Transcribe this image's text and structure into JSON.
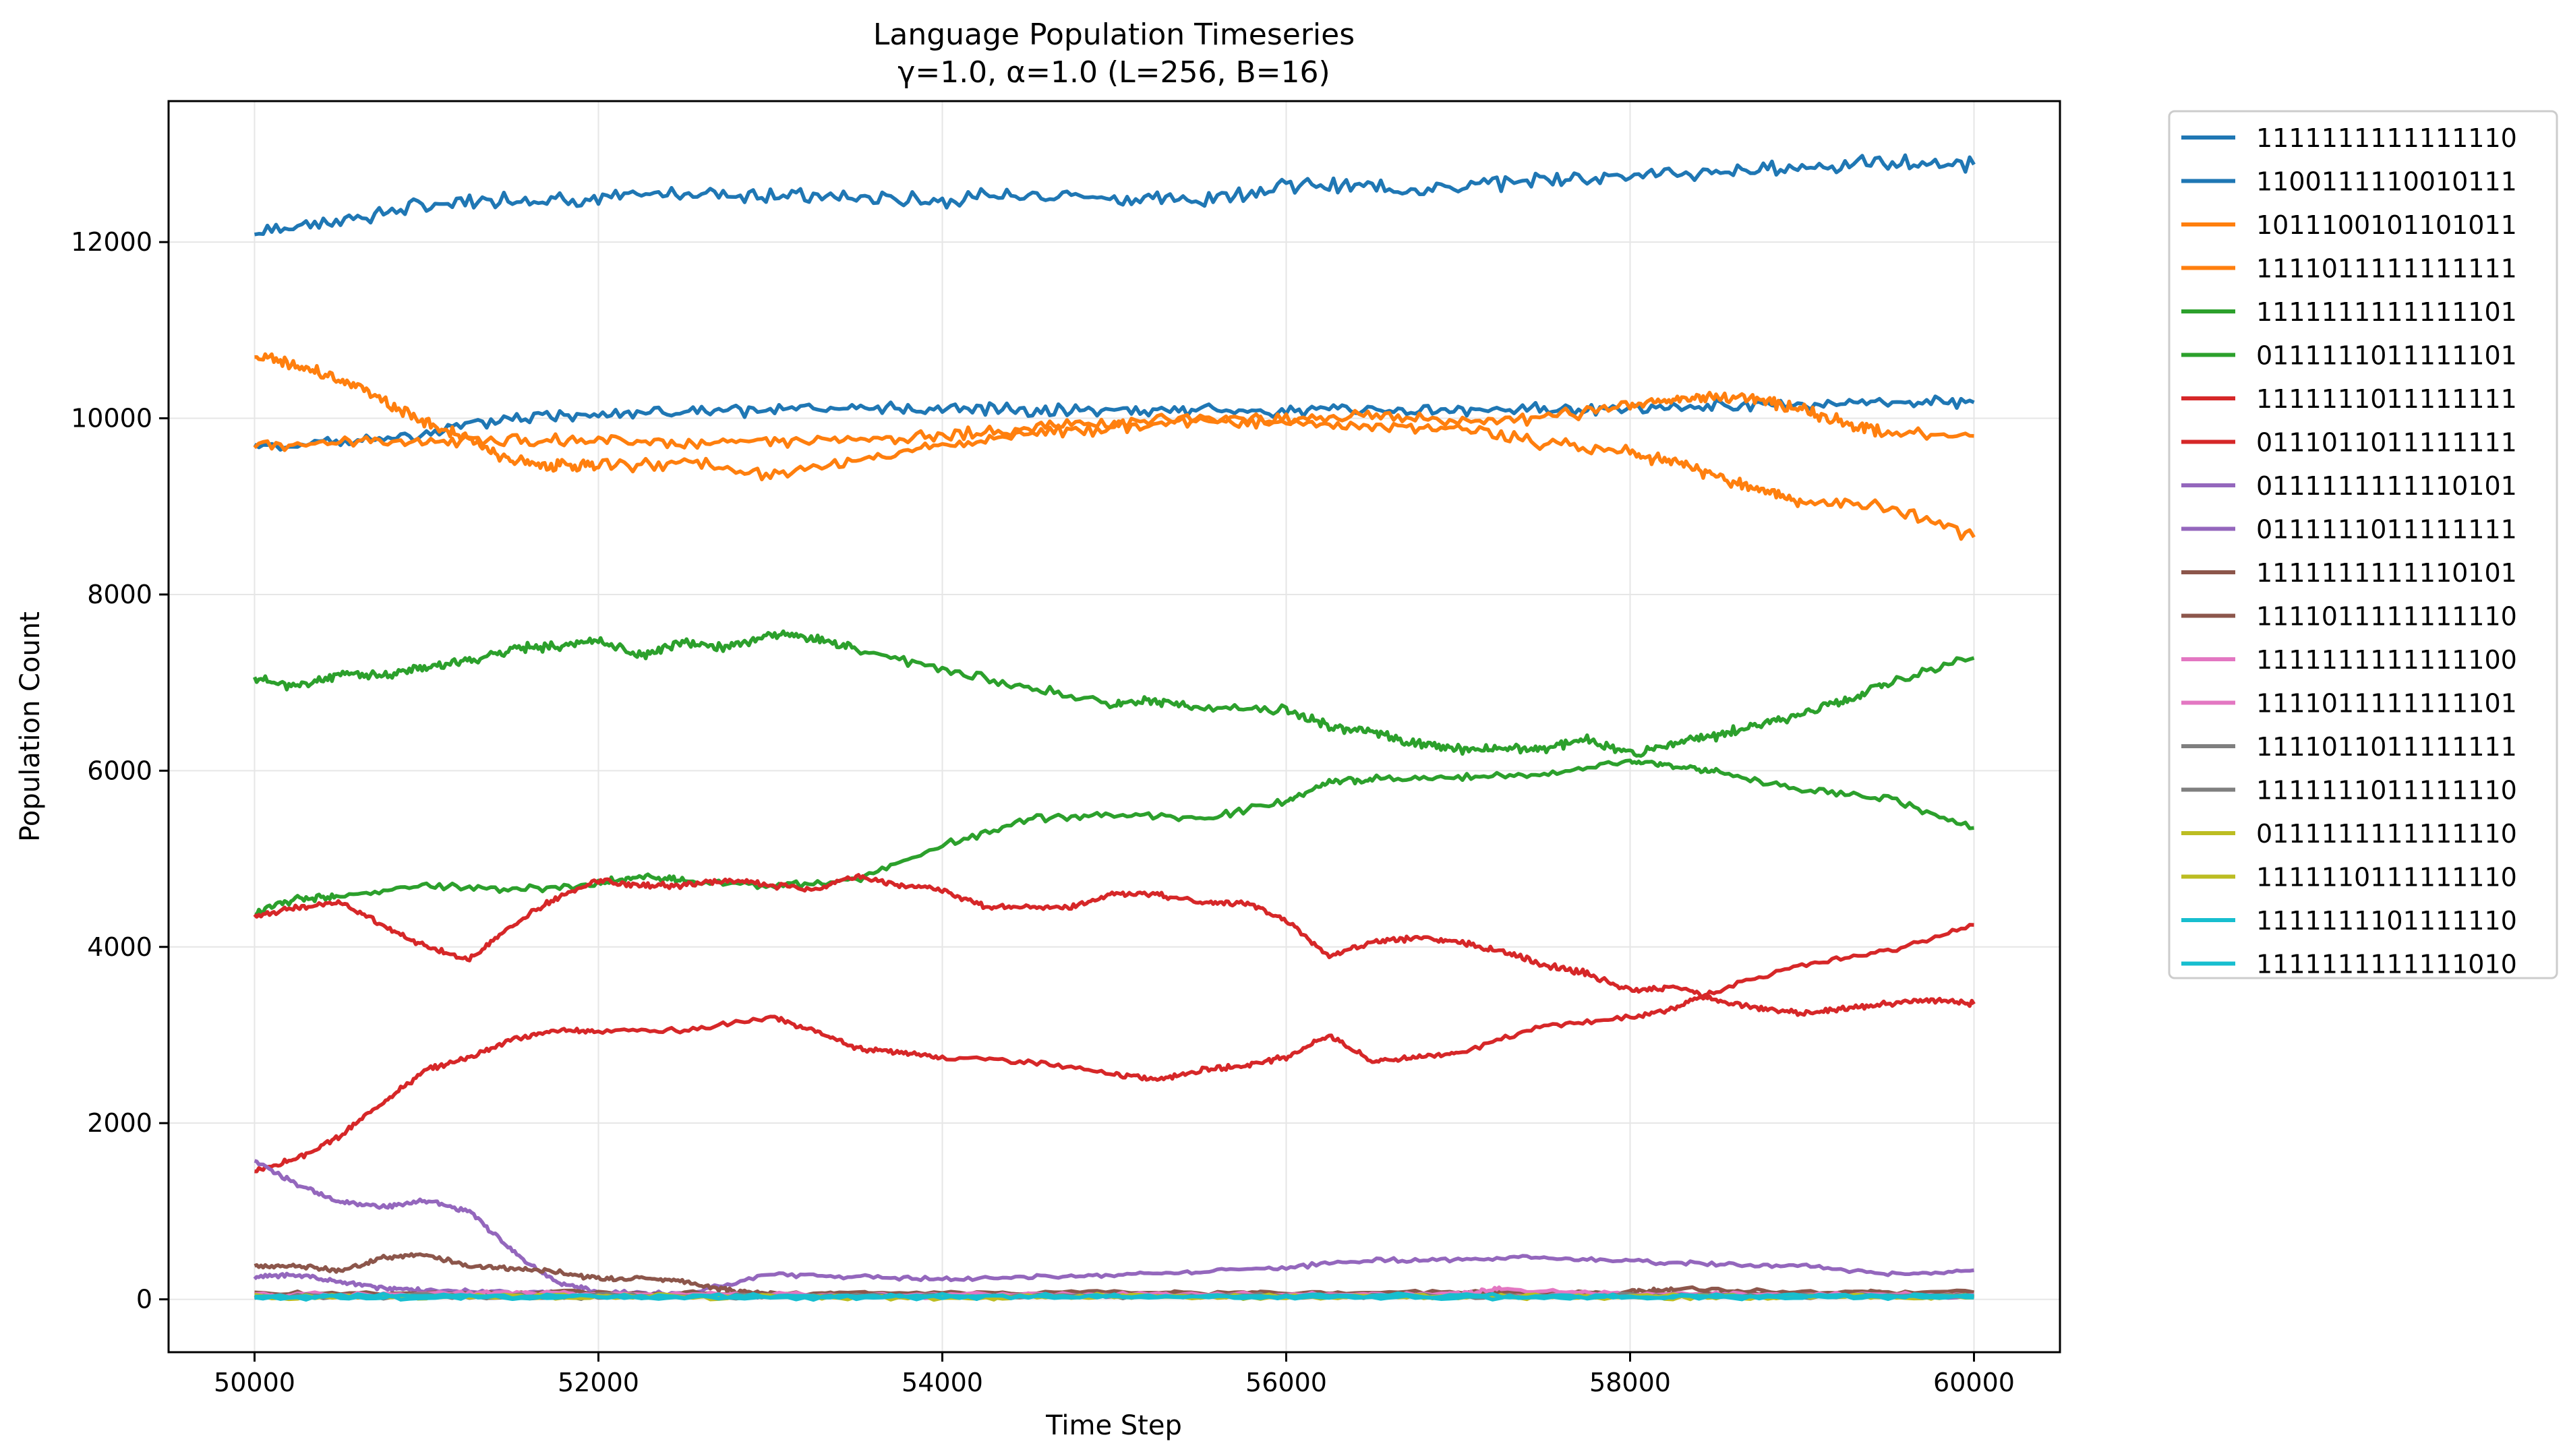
{
  "chart_data": {
    "type": "line",
    "title_line1": "Language Population Timeseries",
    "title_line2": "γ=1.0, α=1.0 (L=256, B=16)",
    "xlabel": "Time Step",
    "ylabel": "Population Count",
    "xlim": [
      49500,
      60500
    ],
    "ylim": [
      -600,
      13600
    ],
    "xticks": [
      50000,
      52000,
      54000,
      56000,
      58000,
      60000
    ],
    "yticks": [
      0,
      2000,
      4000,
      6000,
      8000,
      10000,
      12000
    ],
    "grid": true,
    "legend_placement": "outside-right-top",
    "series": [
      {
        "name": "1111111111111110",
        "color": "#1f77b4",
        "x": [
          50000,
          50500,
          51000,
          51500,
          52000,
          52500,
          53000,
          53500,
          54000,
          54500,
          55000,
          55500,
          56000,
          56500,
          57000,
          57500,
          58000,
          58500,
          59000,
          59500,
          60000
        ],
        "y": [
          12120,
          12250,
          12420,
          12500,
          12480,
          12560,
          12540,
          12500,
          12480,
          12560,
          12500,
          12480,
          12650,
          12620,
          12620,
          12720,
          12760,
          12780,
          12860,
          12900,
          12880
        ]
      },
      {
        "name": "1100111110010111",
        "color": "#1f77b4",
        "x": [
          50000,
          50500,
          51000,
          51500,
          52000,
          52500,
          53000,
          53500,
          54000,
          54500,
          55000,
          55500,
          56000,
          56500,
          57000,
          57500,
          58000,
          58500,
          59000,
          59500,
          60000
        ],
        "y": [
          9680,
          9720,
          9820,
          10000,
          10060,
          10070,
          10090,
          10100,
          10110,
          10100,
          10100,
          10090,
          10080,
          10110,
          10080,
          10110,
          10110,
          10130,
          10150,
          10180,
          10180
        ]
      },
      {
        "name": "1011100101101011",
        "color": "#ff7f0e",
        "x": [
          50000,
          50250,
          50500,
          50750,
          51000,
          51250,
          51500,
          51750,
          52000,
          52500,
          53000,
          53500,
          54000,
          54500,
          55000,
          55500,
          56000,
          56500,
          57000,
          57500,
          58000,
          58250,
          58500,
          58750,
          59000,
          59500,
          60000
        ],
        "y": [
          10700,
          10600,
          10450,
          10200,
          9950,
          9750,
          9520,
          9450,
          9450,
          9500,
          9350,
          9520,
          9700,
          9820,
          9900,
          9980,
          9950,
          9900,
          9900,
          9720,
          9620,
          9500,
          9350,
          9200,
          9050,
          9000,
          8650
        ]
      },
      {
        "name": "1111011111111111",
        "color": "#ff7f0e",
        "x": [
          50000,
          50500,
          51000,
          51500,
          52000,
          52500,
          53000,
          53500,
          54000,
          54500,
          55000,
          55500,
          56000,
          56500,
          57000,
          57500,
          58000,
          58250,
          58500,
          58750,
          59000,
          59250,
          59500,
          60000
        ],
        "y": [
          9700,
          9720,
          9750,
          9760,
          9750,
          9720,
          9730,
          9750,
          9800,
          9900,
          9950,
          9980,
          10000,
          10020,
          9950,
          10000,
          10150,
          10200,
          10250,
          10220,
          10100,
          9950,
          9820,
          9800
        ]
      },
      {
        "name": "1111111111111101",
        "color": "#2ca02c",
        "x": [
          50000,
          50250,
          50500,
          50750,
          51000,
          51250,
          51500,
          51750,
          52000,
          52250,
          52500,
          52750,
          53000,
          53250,
          53500,
          54000,
          54500,
          55000,
          55250,
          55500,
          56000,
          56250,
          56500,
          56750,
          57000,
          57250,
          57500,
          57750,
          58000,
          58250,
          58500,
          58750,
          59000,
          59250,
          59500,
          60000
        ],
        "y": [
          7050,
          6950,
          7100,
          7080,
          7180,
          7250,
          7380,
          7420,
          7480,
          7300,
          7450,
          7400,
          7550,
          7500,
          7380,
          7150,
          6950,
          6750,
          6800,
          6700,
          6700,
          6500,
          6450,
          6300,
          6250,
          6250,
          6250,
          6350,
          6200,
          6300,
          6400,
          6520,
          6650,
          6800,
          7000,
          7280
        ]
      },
      {
        "name": "0111111011111101",
        "color": "#2ca02c",
        "x": [
          50000,
          50250,
          50500,
          51000,
          51500,
          52000,
          52250,
          52500,
          53000,
          53500,
          54000,
          54500,
          55000,
          55500,
          56000,
          56250,
          56500,
          57000,
          57500,
          58000,
          58250,
          58500,
          59000,
          59500,
          60000
        ],
        "y": [
          4380,
          4550,
          4580,
          4700,
          4650,
          4720,
          4800,
          4750,
          4700,
          4750,
          5150,
          5450,
          5500,
          5450,
          5650,
          5880,
          5900,
          5920,
          5950,
          6100,
          6050,
          5980,
          5780,
          5680,
          5350
        ]
      },
      {
        "name": "1111111011111111",
        "color": "#d62728",
        "x": [
          50000,
          50250,
          50500,
          50750,
          51000,
          51250,
          51500,
          51750,
          52000,
          52250,
          52500,
          52750,
          53000,
          53250,
          53500,
          53750,
          54000,
          54250,
          54500,
          54750,
          55000,
          55250,
          55500,
          55750,
          56000,
          56250,
          56500,
          56750,
          57000,
          57250,
          57500,
          57750,
          58000,
          58250,
          58500,
          58750,
          59000,
          59250,
          59500,
          59750,
          60000
        ],
        "y": [
          4350,
          4450,
          4500,
          4250,
          4000,
          3850,
          4250,
          4550,
          4750,
          4700,
          4700,
          4750,
          4700,
          4650,
          4800,
          4700,
          4650,
          4450,
          4450,
          4450,
          4600,
          4600,
          4500,
          4500,
          4300,
          3900,
          4050,
          4100,
          4050,
          3950,
          3800,
          3700,
          3500,
          3550,
          3400,
          3300,
          3250,
          3300,
          3350,
          3400,
          3350
        ]
      },
      {
        "name": "0111011011111111",
        "color": "#d62728",
        "x": [
          50000,
          50250,
          50500,
          50750,
          51000,
          51250,
          51500,
          51750,
          52000,
          52500,
          53000,
          53250,
          53500,
          53750,
          54000,
          54500,
          55000,
          55250,
          55500,
          55750,
          56000,
          56250,
          56500,
          56750,
          57000,
          57500,
          58000,
          58250,
          58500,
          59000,
          59500,
          60000
        ],
        "y": [
          1450,
          1600,
          1850,
          2250,
          2600,
          2750,
          2950,
          3050,
          3050,
          3050,
          3200,
          3050,
          2850,
          2800,
          2750,
          2700,
          2550,
          2500,
          2600,
          2650,
          2750,
          3000,
          2700,
          2750,
          2800,
          3100,
          3200,
          3300,
          3500,
          3800,
          3950,
          4250
        ]
      },
      {
        "name": "0111111111110101",
        "color": "#9467bd",
        "x": [
          50000,
          50250,
          50500,
          50750,
          51000,
          51250,
          51500,
          51750,
          52000,
          52500,
          53000,
          53500,
          54000,
          54500,
          55000,
          55500,
          56000,
          56500,
          57000,
          57500,
          58000,
          58500,
          59000,
          59500,
          60000
        ],
        "y": [
          1580,
          1300,
          1100,
          1050,
          1120,
          1000,
          550,
          200,
          80,
          60,
          280,
          260,
          230,
          250,
          280,
          320,
          360,
          450,
          450,
          480,
          430,
          400,
          380,
          280,
          330
        ]
      },
      {
        "name": "0111111011111111",
        "color": "#9467bd",
        "x": [
          50000,
          50250,
          50500,
          50750,
          51000,
          51500,
          52000,
          52500,
          53000,
          54000,
          55000,
          56000,
          57000,
          58000,
          59000,
          60000
        ],
        "y": [
          250,
          280,
          200,
          130,
          100,
          80,
          60,
          50,
          40,
          40,
          40,
          40,
          40,
          40,
          40,
          40
        ]
      },
      {
        "name": "1111111111110101",
        "color": "#8c564b",
        "x": [
          50000,
          50250,
          50500,
          50750,
          51000,
          51250,
          51500,
          51750,
          52000,
          52250,
          52500,
          52750,
          53000,
          54000,
          55000,
          56000,
          57000,
          58000,
          58250,
          59000,
          60000
        ],
        "y": [
          380,
          380,
          320,
          480,
          500,
          380,
          350,
          320,
          230,
          250,
          200,
          100,
          60,
          70,
          80,
          70,
          60,
          80,
          120,
          80,
          80
        ]
      },
      {
        "name": "1111011111111110",
        "color": "#8c564b",
        "x": [
          50000,
          51000,
          52000,
          53000,
          54000,
          55000,
          56000,
          57000,
          58000,
          59000,
          60000
        ],
        "y": [
          60,
          70,
          80,
          60,
          70,
          60,
          70,
          80,
          60,
          70,
          60
        ]
      },
      {
        "name": "1111111111111100",
        "color": "#e377c2",
        "x": [
          50000,
          51000,
          51500,
          52000,
          53000,
          54000,
          55000,
          56000,
          57000,
          57250,
          58000,
          59000,
          60000
        ],
        "y": [
          50,
          60,
          80,
          60,
          50,
          50,
          60,
          50,
          60,
          120,
          60,
          50,
          50
        ]
      },
      {
        "name": "1111011111111101",
        "color": "#e377c2",
        "x": [
          50000,
          51000,
          52000,
          53000,
          54000,
          55000,
          56000,
          57000,
          58000,
          59000,
          60000
        ],
        "y": [
          40,
          50,
          40,
          50,
          40,
          50,
          40,
          50,
          40,
          50,
          40
        ]
      },
      {
        "name": "1111011011111111",
        "color": "#7f7f7f",
        "x": [
          50000,
          51000,
          52000,
          53000,
          54000,
          55000,
          56000,
          57000,
          58000,
          59000,
          60000
        ],
        "y": [
          30,
          40,
          30,
          40,
          30,
          40,
          30,
          40,
          30,
          40,
          30
        ]
      },
      {
        "name": "1111111011111110",
        "color": "#7f7f7f",
        "x": [
          50000,
          51000,
          52000,
          53000,
          54000,
          55000,
          56000,
          57000,
          58000,
          59000,
          60000
        ],
        "y": [
          40,
          30,
          40,
          30,
          40,
          30,
          40,
          30,
          40,
          30,
          40
        ]
      },
      {
        "name": "0111111111111110",
        "color": "#bcbd22",
        "x": [
          50000,
          51000,
          52000,
          53000,
          54000,
          55000,
          56000,
          57000,
          58000,
          59000,
          60000
        ],
        "y": [
          30,
          30,
          40,
          30,
          30,
          40,
          30,
          30,
          40,
          30,
          30
        ]
      },
      {
        "name": "1111110111111110",
        "color": "#bcbd22",
        "x": [
          50000,
          51000,
          52000,
          53000,
          54000,
          55000,
          56000,
          57000,
          58000,
          59000,
          60000
        ],
        "y": [
          20,
          30,
          20,
          30,
          20,
          30,
          20,
          30,
          20,
          30,
          20
        ]
      },
      {
        "name": "1111111101111110",
        "color": "#17becf",
        "x": [
          50000,
          51000,
          52000,
          53000,
          54000,
          55000,
          56000,
          57000,
          58000,
          59000,
          60000
        ],
        "y": [
          20,
          20,
          30,
          20,
          20,
          30,
          20,
          20,
          30,
          20,
          20
        ]
      },
      {
        "name": "1111111111111010",
        "color": "#17becf",
        "x": [
          50000,
          51000,
          52000,
          53000,
          54000,
          55000,
          56000,
          57000,
          58000,
          59000,
          60000
        ],
        "y": [
          40,
          40,
          30,
          40,
          40,
          30,
          40,
          40,
          30,
          40,
          40
        ]
      }
    ]
  }
}
